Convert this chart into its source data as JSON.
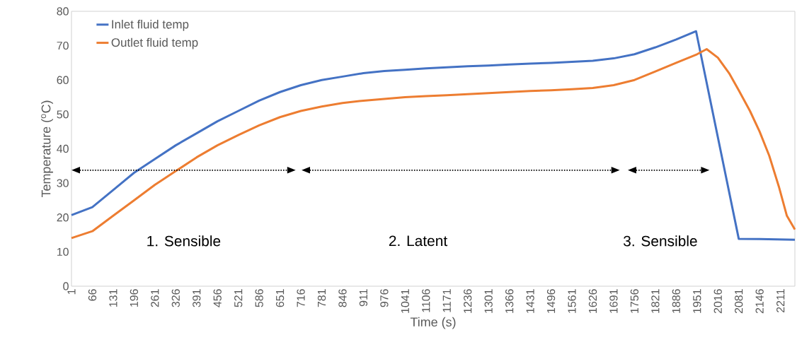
{
  "chart_data": {
    "type": "line",
    "xlabel": "Time (s)",
    "ylabel": "Temperature ($^{o}$C)",
    "xlim": [
      1,
      2256
    ],
    "xticks": [
      1,
      66,
      131,
      196,
      261,
      326,
      391,
      456,
      521,
      586,
      651,
      716,
      781,
      846,
      911,
      976,
      1041,
      1106,
      1171,
      1236,
      1301,
      1366,
      1431,
      1496,
      1561,
      1626,
      1691,
      1756,
      1821,
      1886,
      1951,
      2016,
      2081,
      2146,
      2211
    ],
    "ylim": [
      0,
      80
    ],
    "yticks": [
      0,
      10,
      20,
      30,
      40,
      50,
      60,
      70,
      80
    ],
    "legend": "top left",
    "series": [
      {
        "name": "Inlet fluid temp",
        "color": "#4472c4",
        "x": [
          1,
          66,
          131,
          196,
          261,
          326,
          391,
          456,
          521,
          586,
          651,
          716,
          781,
          846,
          911,
          976,
          1041,
          1106,
          1171,
          1236,
          1301,
          1366,
          1431,
          1496,
          1561,
          1626,
          1691,
          1756,
          1821,
          1886,
          1948,
          2081,
          2146,
          2256
        ],
        "values": [
          20.7,
          23,
          28,
          33,
          37,
          41,
          44.5,
          48,
          51,
          54,
          56.5,
          58.5,
          60,
          61,
          62,
          62.6,
          63,
          63.4,
          63.7,
          64,
          64.2,
          64.5,
          64.8,
          65,
          65.3,
          65.6,
          66.3,
          67.5,
          69.5,
          71.8,
          74.2,
          13.8,
          13.7,
          13.5
        ]
      },
      {
        "name": "Outlet fluid temp",
        "color": "#ed7d31",
        "x": [
          1,
          66,
          131,
          196,
          261,
          326,
          391,
          456,
          521,
          586,
          651,
          716,
          781,
          846,
          911,
          976,
          1041,
          1106,
          1171,
          1236,
          1301,
          1366,
          1431,
          1496,
          1561,
          1626,
          1691,
          1756,
          1821,
          1886,
          1951,
          1981,
          2016,
          2051,
          2081,
          2116,
          2146,
          2176,
          2206,
          2231,
          2256
        ],
        "values": [
          14,
          16,
          20.5,
          25,
          29.5,
          33.5,
          37.5,
          41,
          44,
          46.8,
          49.2,
          51,
          52.3,
          53.3,
          54,
          54.5,
          55,
          55.3,
          55.6,
          55.9,
          56.2,
          56.5,
          56.8,
          57,
          57.3,
          57.7,
          58.5,
          60,
          62.5,
          65,
          67.5,
          69,
          66.5,
          62,
          57,
          51,
          45,
          38,
          29,
          20.5,
          16.5
        ]
      }
    ],
    "annotations": [
      "1. Sensible",
      "2. Latent",
      "3. Sensible"
    ]
  }
}
